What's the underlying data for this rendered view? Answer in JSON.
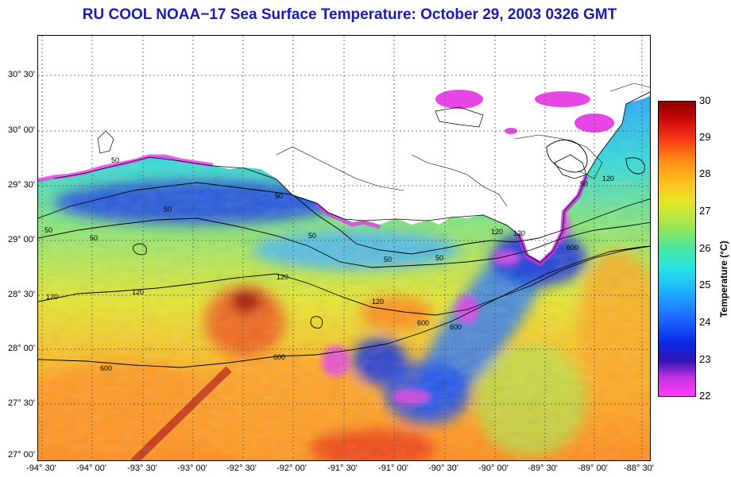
{
  "title": "RU COOL  NOAA−17  Sea Surface Temperature:  October 29, 2003 0326 GMT",
  "y_axis": {
    "ticks": [
      "30° 30'",
      "30° 00'",
      "29° 30'",
      "29° 00'",
      "28° 30'",
      "28° 00'",
      "27° 30'",
      "27° 00'"
    ]
  },
  "x_axis": {
    "ticks": [
      "-94° 30'",
      "-94° 00'",
      "-93° 30'",
      "-93° 00'",
      "-92° 30'",
      "-92° 00'",
      "-91° 30'",
      "-91° 00'",
      "-90° 30'",
      "-90° 00'",
      "-89° 30'",
      "-89° 00'",
      "-88° 30'"
    ]
  },
  "colorbar": {
    "label": "Temperature (°C)",
    "ticks": [
      "30",
      "29",
      "28",
      "27",
      "26",
      "25",
      "24",
      "23",
      "22"
    ],
    "min": 22,
    "max": 30
  },
  "contour_labels": [
    "50",
    "50",
    "50",
    "50",
    "50",
    "50",
    "50",
    "50",
    "120",
    "120",
    "120",
    "120",
    "120",
    "120",
    "600",
    "600",
    "600",
    "600",
    "600",
    "120",
    "50"
  ]
}
